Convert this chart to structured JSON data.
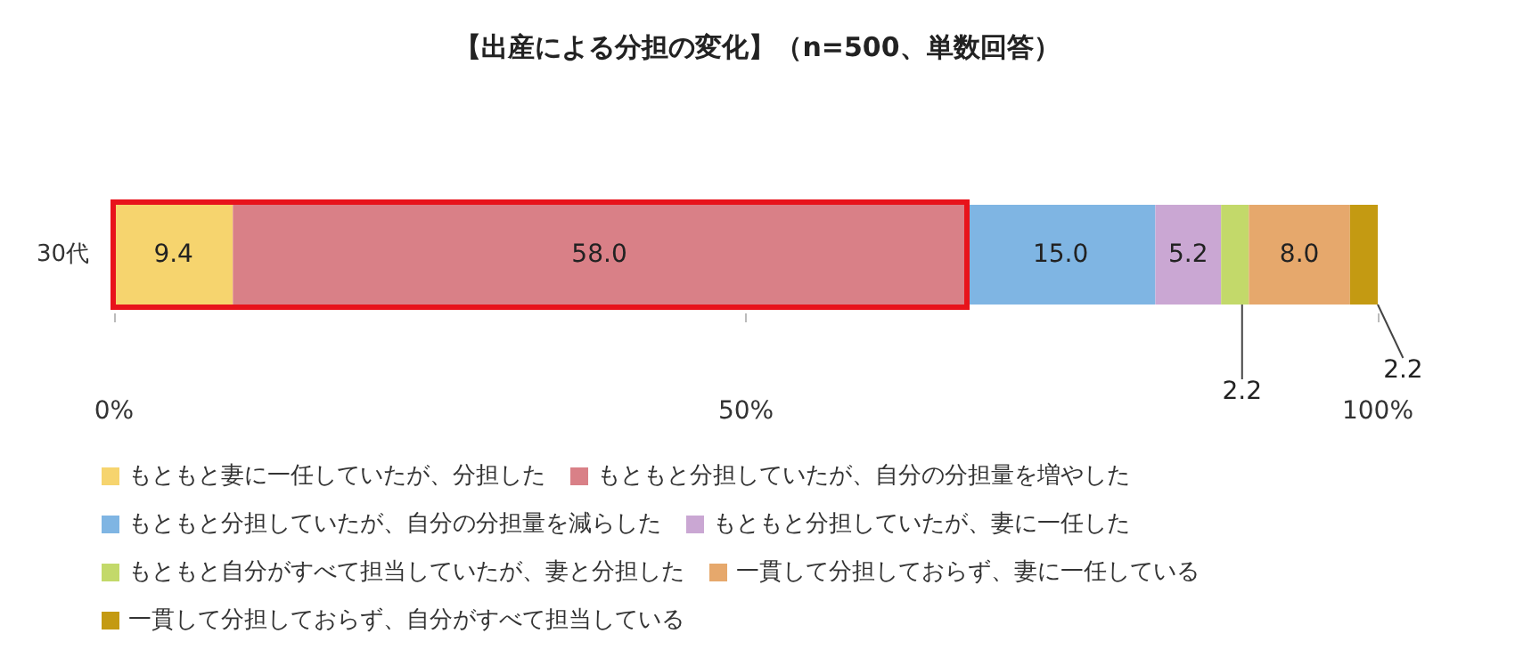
{
  "chart_data": {
    "type": "bar",
    "title": "【出産による分担の変化】（n=500、単数回答）",
    "orientation": "horizontal",
    "stacked": true,
    "categories": [
      "30代"
    ],
    "series": [
      {
        "name": "もともと妻に一任していたが、分担した",
        "color": "#f6d46e",
        "values": [
          9.4
        ],
        "value_labels": [
          "9.4"
        ]
      },
      {
        "name": "もともと分担していたが、自分の分担量を増やした",
        "color": "#d98087",
        "values": [
          58.0
        ],
        "value_labels": [
          "58.0"
        ]
      },
      {
        "name": "もともと分担していたが、自分の分担量を減らした",
        "color": "#7fb5e3",
        "values": [
          15.0
        ],
        "value_labels": [
          "15.0"
        ]
      },
      {
        "name": "もともと分担していたが、妻に一任した",
        "color": "#caa7d3",
        "values": [
          5.2
        ],
        "value_labels": [
          "5.2"
        ]
      },
      {
        "name": "もともと自分がすべて担当していたが、妻と分担した",
        "color": "#c3d96a",
        "values": [
          2.2
        ],
        "value_labels": [
          "2.2"
        ]
      },
      {
        "name": "一貫して分担しておらず、妻に一任している",
        "color": "#e6a86c",
        "values": [
          8.0
        ],
        "value_labels": [
          "8.0"
        ]
      },
      {
        "name": "一貫して分担しておらず、自分がすべて担当している",
        "color": "#c49a12",
        "values": [
          2.2
        ],
        "value_labels": [
          "2.2"
        ]
      }
    ],
    "xlim": [
      0,
      100
    ],
    "xticks": [
      {
        "value": 0,
        "label": "0%"
      },
      {
        "value": 50,
        "label": "50%"
      },
      {
        "value": 100,
        "label": "100%"
      }
    ],
    "grid": false,
    "legend": "bottom"
  }
}
